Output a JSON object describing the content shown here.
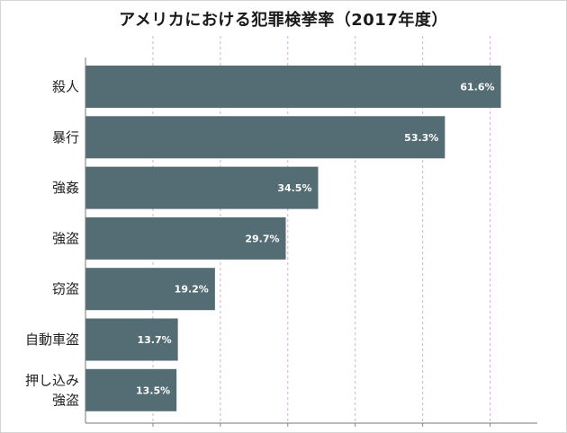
{
  "chart_data": {
    "type": "bar",
    "orientation": "horizontal",
    "title": "アメリカにおける犯罪検挙率（2017年度）",
    "categories": [
      "殺人",
      "暴行",
      "強姦",
      "強盗",
      "窃盗",
      "自動車盗",
      "押し込み\n強盗"
    ],
    "values": [
      61.6,
      53.3,
      34.5,
      29.7,
      19.2,
      13.7,
      13.5
    ],
    "value_labels": [
      "61.6%",
      "53.3%",
      "34.5%",
      "29.7%",
      "19.2%",
      "13.7%",
      "13.5%"
    ],
    "xlim": [
      0,
      67
    ],
    "gridlines": [
      10,
      20,
      30,
      40,
      50,
      60
    ],
    "grid": true,
    "bar_color": "#546d75",
    "grid_color": "#d9a9d9"
  }
}
